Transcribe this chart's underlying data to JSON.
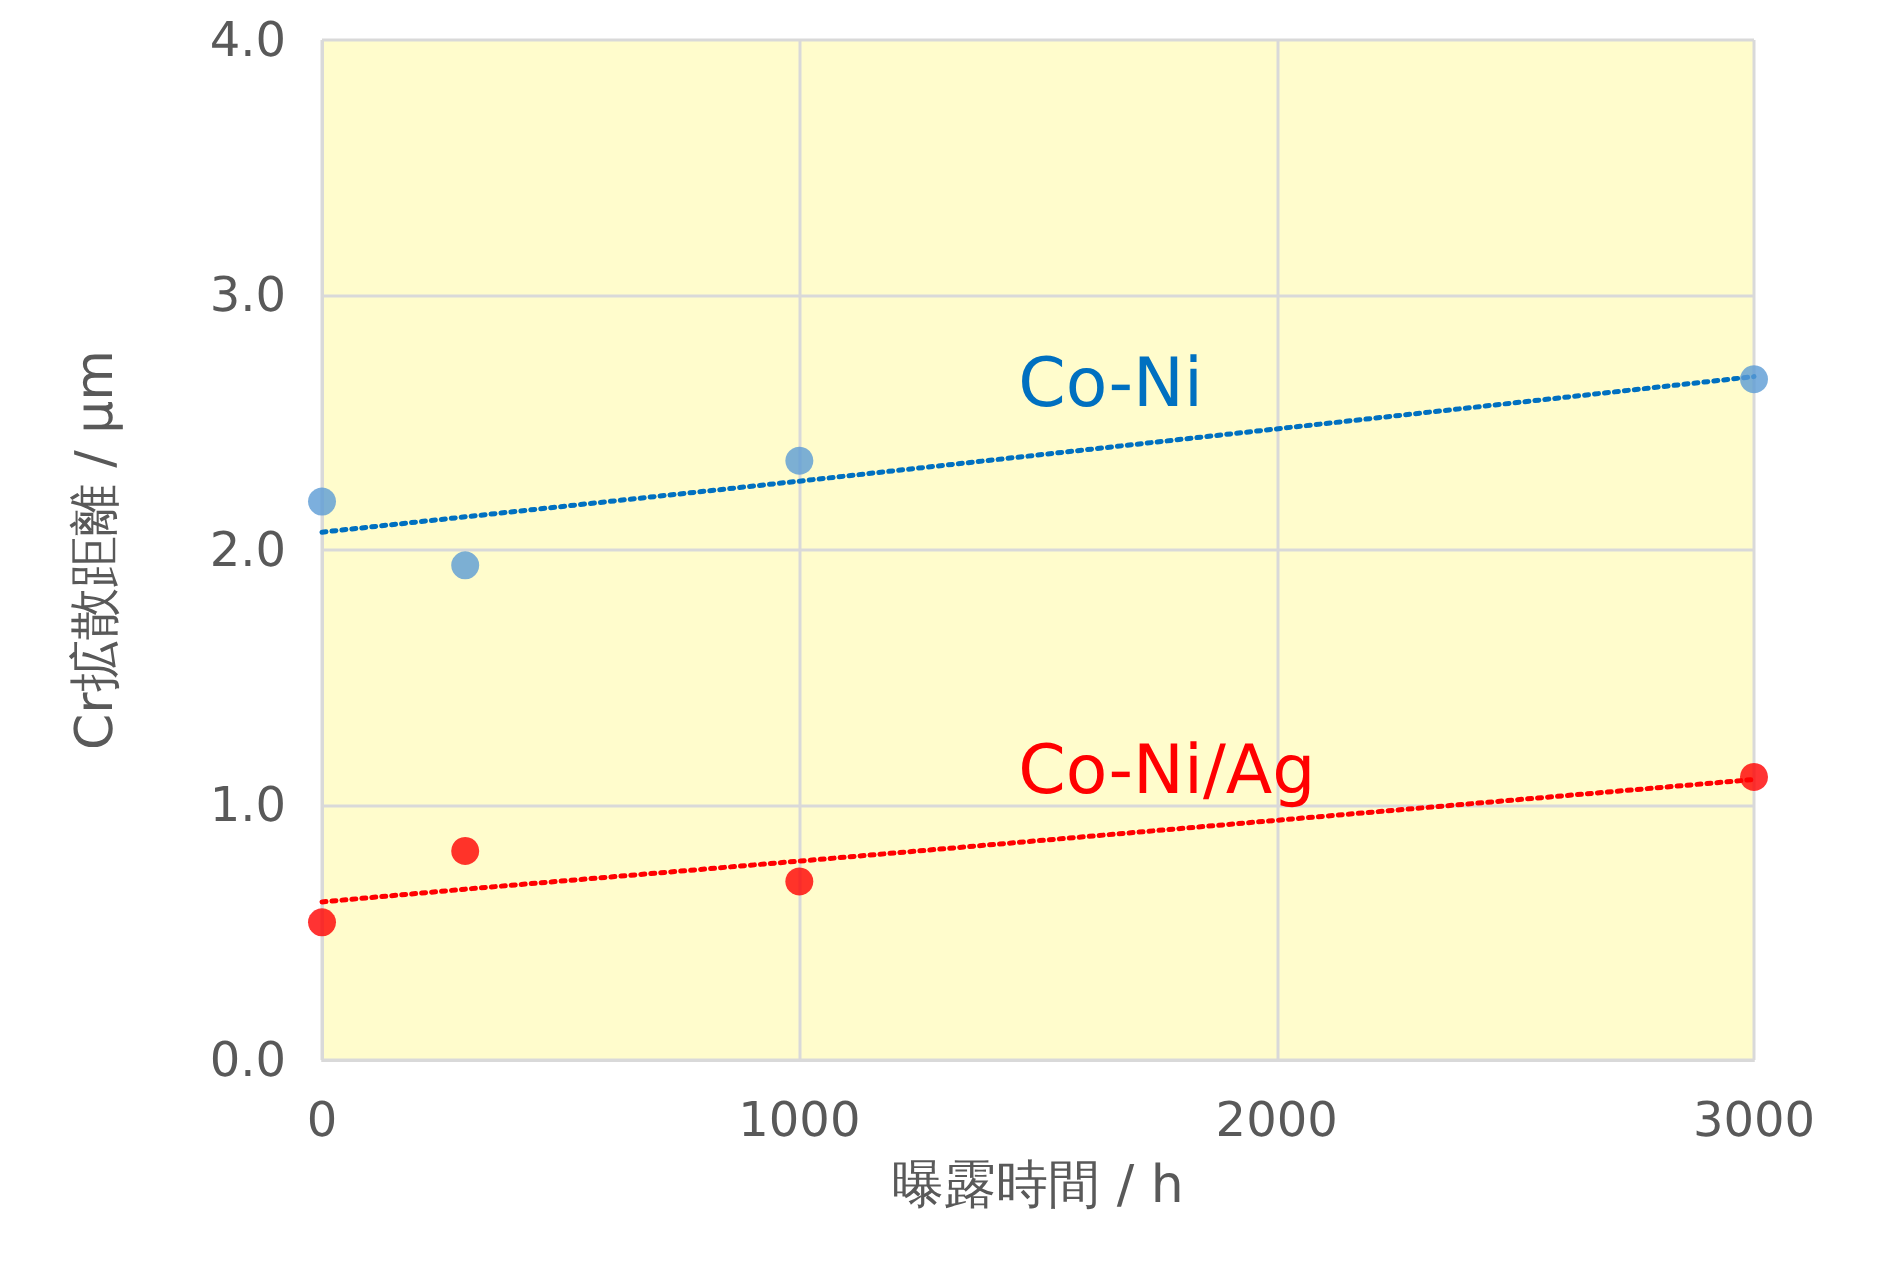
{
  "chart_data": {
    "type": "scatter",
    "xlabel": "曝露時間 / h",
    "ylabel": "Cr拡散距離 / μm",
    "x": [
      0,
      300,
      1000,
      3000
    ],
    "series": [
      {
        "color": "#5b9bd5",
        "values": [
          2.19,
          1.94,
          2.35,
          2.67
        ]
      },
      {
        "color": "#ff0000",
        "values": [
          0.54,
          0.82,
          0.7,
          1.11
        ]
      },
      {
        "type": "line",
        "name": "Co-Ni",
        "color": "#0070c0",
        "values": [
          2.07,
          2.13,
          2.27,
          2.68
        ],
        "line_style": "dotted",
        "marker": "none"
      },
      {
        "type": "line",
        "name": "Co-Ni/Ag",
        "color": "#ff0000",
        "values": [
          0.62,
          0.67,
          0.78,
          1.1
        ],
        "line_style": "dotted",
        "marker": "none"
      }
    ],
    "xlim": [
      0,
      3000
    ],
    "xticks": [
      0,
      1000,
      2000,
      3000
    ],
    "ylim": [
      0,
      4
    ],
    "yticks": [
      {
        "value": 0,
        "label": "0.0"
      },
      {
        "value": 1,
        "label": "1.0"
      },
      {
        "value": 2,
        "label": "2.0"
      },
      {
        "value": 3,
        "label": "3.0"
      },
      {
        "value": 4,
        "label": "4.0"
      }
    ],
    "grid": true,
    "legend": false,
    "marker": "circle"
  }
}
